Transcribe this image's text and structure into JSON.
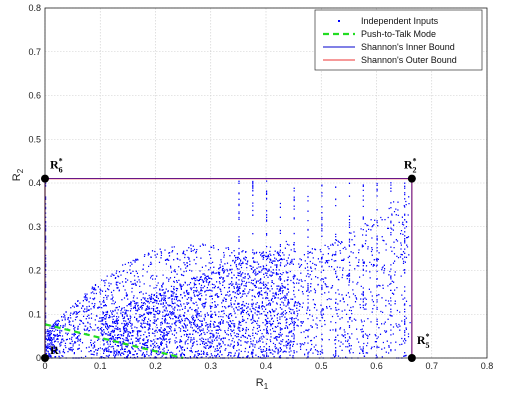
{
  "chart_data": {
    "type": "scatter",
    "xlabel": "R",
    "xlabel_sub": "1",
    "ylabel": "R",
    "ylabel_sub": "2",
    "xlim": [
      0,
      0.8
    ],
    "ylim": [
      0,
      0.8
    ],
    "xticks": [
      "0",
      "0.1",
      "0.2",
      "0.3",
      "0.4",
      "0.5",
      "0.6",
      "0.7",
      "0.8"
    ],
    "yticks": [
      "0",
      "0.1",
      "0.2",
      "0.3",
      "0.4",
      "0.5",
      "0.6",
      "0.7",
      "0.8"
    ],
    "grid": true,
    "legend_position": "top-right",
    "series": [
      {
        "name": "Independent Inputs",
        "style": "dots",
        "color": "#0000ff",
        "description_extent": {
          "x": [
            0,
            0.66
          ],
          "y": [
            0,
            0.405
          ]
        }
      },
      {
        "name": "Push-to-Talk Mode",
        "style": "dashed",
        "color": "#22dd22",
        "points": [
          [
            0,
            0.077
          ],
          [
            0.25,
            0
          ]
        ]
      },
      {
        "name": "Shannon's Inner Bound",
        "style": "line",
        "color": "#0000cc",
        "points": [
          [
            0,
            0
          ],
          [
            0,
            0.41
          ],
          [
            0.664,
            0.41
          ],
          [
            0.664,
            0
          ]
        ]
      },
      {
        "name": "Shannon's Outer Bound",
        "style": "line",
        "color": "#ee3333",
        "points": [
          [
            0,
            0
          ],
          [
            0,
            0.41
          ],
          [
            0.664,
            0.41
          ],
          [
            0.664,
            0
          ]
        ]
      }
    ],
    "corner_points": [
      {
        "label": "R",
        "sup": "*",
        "sub": "6",
        "x": 0,
        "y": 0.41
      },
      {
        "label": "R",
        "sup": "*",
        "sub": "2",
        "x": 0.664,
        "y": 0.41
      },
      {
        "label": "R",
        "sup": "*",
        "sub": "5",
        "x": 0.664,
        "y": 0
      },
      {
        "label": "R",
        "sup": "",
        "sub": "",
        "x": 0,
        "y": 0
      }
    ]
  },
  "colors": {
    "axis": "#222222",
    "grid": "#cccccc",
    "dots": "#0000ff",
    "ptt": "#22dd22",
    "inner": "#0000cc",
    "outer": "#ee3333"
  }
}
